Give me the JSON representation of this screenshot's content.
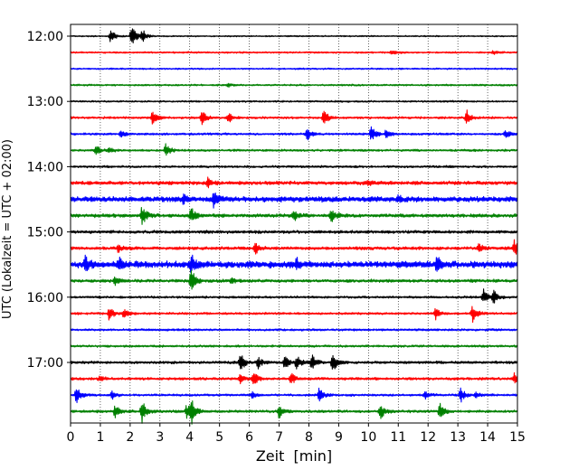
{
  "chart_data": {
    "type": "line",
    "subtype": "helicorder (seismogram drum plot)",
    "xlabel": "Zeit  [min]",
    "ylabel": "UTC (Lokalzeit = UTC + 02:00)",
    "xlim": [
      0,
      15
    ],
    "x_ticks": [
      0,
      1,
      2,
      3,
      4,
      5,
      6,
      7,
      8,
      9,
      10,
      11,
      12,
      13,
      14,
      15
    ],
    "x_tick_labels": [
      "0",
      "1",
      "2",
      "3",
      "4",
      "5",
      "6",
      "7",
      "8",
      "9",
      "10",
      "11",
      "12",
      "13",
      "14",
      "15"
    ],
    "x_grid": "dotted vertical lines at every minute",
    "y_tick_labels": [
      "12:00",
      "13:00",
      "14:00",
      "15:00",
      "16:00",
      "17:00"
    ],
    "row_minutes": 15,
    "row_colors_cycle": [
      "#000000",
      "#ff0000",
      "#0000ff",
      "#008000"
    ],
    "trace_rows": [
      {
        "start": "12:00",
        "color": "#000000",
        "noise": 0.6,
        "events": [
          {
            "x": 1.35,
            "amp": 8
          },
          {
            "x": 2.05,
            "amp": 14
          },
          {
            "x": 2.4,
            "amp": 8
          }
        ]
      },
      {
        "start": "12:15",
        "color": "#ff0000",
        "noise": 0.8,
        "events": [
          {
            "x": 10.8,
            "amp": 3
          },
          {
            "x": 14.2,
            "amp": 2
          }
        ]
      },
      {
        "start": "12:30",
        "color": "#0000ff",
        "noise": 0.7,
        "events": []
      },
      {
        "start": "12:45",
        "color": "#008000",
        "noise": 0.8,
        "events": [
          {
            "x": 5.3,
            "amp": 2
          }
        ]
      },
      {
        "start": "13:00",
        "color": "#000000",
        "noise": 0.8,
        "events": []
      },
      {
        "start": "13:15",
        "color": "#ff0000",
        "noise": 1.0,
        "events": [
          {
            "x": 2.75,
            "amp": 9
          },
          {
            "x": 4.4,
            "amp": 9
          },
          {
            "x": 5.3,
            "amp": 6
          },
          {
            "x": 8.5,
            "amp": 9
          },
          {
            "x": 13.3,
            "amp": 8
          }
        ]
      },
      {
        "start": "13:30",
        "color": "#0000ff",
        "noise": 1.0,
        "events": [
          {
            "x": 1.7,
            "amp": 4
          },
          {
            "x": 7.95,
            "amp": 7
          },
          {
            "x": 10.1,
            "amp": 9
          },
          {
            "x": 10.6,
            "amp": 6
          },
          {
            "x": 14.6,
            "amp": 5
          }
        ]
      },
      {
        "start": "13:45",
        "color": "#008000",
        "noise": 1.0,
        "events": [
          {
            "x": 0.85,
            "amp": 6
          },
          {
            "x": 1.3,
            "amp": 3
          },
          {
            "x": 3.2,
            "amp": 7
          }
        ]
      },
      {
        "start": "14:00",
        "color": "#000000",
        "noise": 1.0,
        "events": []
      },
      {
        "start": "14:15",
        "color": "#ff0000",
        "noise": 1.6,
        "events": [
          {
            "x": 4.6,
            "amp": 6
          },
          {
            "x": 10.0,
            "amp": 3
          }
        ]
      },
      {
        "start": "14:30",
        "color": "#0000ff",
        "noise": 2.4,
        "events": [
          {
            "x": 4.8,
            "amp": 9
          },
          {
            "x": 3.8,
            "amp": 5
          },
          {
            "x": 11.0,
            "amp": 3
          }
        ]
      },
      {
        "start": "14:45",
        "color": "#008000",
        "noise": 1.6,
        "events": [
          {
            "x": 2.4,
            "amp": 12
          },
          {
            "x": 4.05,
            "amp": 9
          },
          {
            "x": 8.75,
            "amp": 8
          },
          {
            "x": 7.5,
            "amp": 5
          }
        ]
      },
      {
        "start": "15:00",
        "color": "#000000",
        "noise": 1.4,
        "events": []
      },
      {
        "start": "15:15",
        "color": "#ff0000",
        "noise": 1.4,
        "events": [
          {
            "x": 1.6,
            "amp": 5
          },
          {
            "x": 6.2,
            "amp": 7
          },
          {
            "x": 13.7,
            "amp": 4
          },
          {
            "x": 14.9,
            "amp": 9
          }
        ]
      },
      {
        "start": "15:30",
        "color": "#0000ff",
        "noise": 3.0,
        "events": [
          {
            "x": 0.5,
            "amp": 9
          },
          {
            "x": 1.6,
            "amp": 7
          },
          {
            "x": 4.05,
            "amp": 10
          },
          {
            "x": 7.6,
            "amp": 6
          },
          {
            "x": 12.3,
            "amp": 8
          }
        ]
      },
      {
        "start": "15:45",
        "color": "#008000",
        "noise": 1.4,
        "events": [
          {
            "x": 4.05,
            "amp": 16
          },
          {
            "x": 1.5,
            "amp": 4
          },
          {
            "x": 5.4,
            "amp": 3
          }
        ]
      },
      {
        "start": "16:00",
        "color": "#000000",
        "noise": 1.0,
        "events": [
          {
            "x": 13.85,
            "amp": 9
          },
          {
            "x": 14.2,
            "amp": 7
          }
        ]
      },
      {
        "start": "16:15",
        "color": "#ff0000",
        "noise": 1.0,
        "events": [
          {
            "x": 1.3,
            "amp": 9
          },
          {
            "x": 1.8,
            "amp": 6
          },
          {
            "x": 12.25,
            "amp": 7
          },
          {
            "x": 13.5,
            "amp": 10
          }
        ]
      },
      {
        "start": "16:30",
        "color": "#0000ff",
        "noise": 1.0,
        "events": []
      },
      {
        "start": "16:45",
        "color": "#008000",
        "noise": 1.0,
        "events": []
      },
      {
        "start": "17:00",
        "color": "#000000",
        "noise": 1.2,
        "events": [
          {
            "x": 5.7,
            "amp": 12
          },
          {
            "x": 7.2,
            "amp": 8
          },
          {
            "x": 7.6,
            "amp": 8
          },
          {
            "x": 8.1,
            "amp": 10
          },
          {
            "x": 8.8,
            "amp": 12
          },
          {
            "x": 6.3,
            "amp": 6
          }
        ]
      },
      {
        "start": "17:15",
        "color": "#ff0000",
        "noise": 1.2,
        "events": [
          {
            "x": 1.0,
            "amp": 3
          },
          {
            "x": 5.7,
            "amp": 5
          },
          {
            "x": 6.15,
            "amp": 8
          },
          {
            "x": 7.4,
            "amp": 7
          },
          {
            "x": 14.9,
            "amp": 6
          }
        ]
      },
      {
        "start": "17:30",
        "color": "#0000ff",
        "noise": 1.0,
        "events": [
          {
            "x": 0.2,
            "amp": 10
          },
          {
            "x": 1.4,
            "amp": 5
          },
          {
            "x": 6.1,
            "amp": 4
          },
          {
            "x": 8.35,
            "amp": 9
          },
          {
            "x": 11.9,
            "amp": 4
          },
          {
            "x": 13.1,
            "amp": 8
          },
          {
            "x": 13.6,
            "amp": 4
          }
        ]
      },
      {
        "start": "17:45",
        "color": "#008000",
        "noise": 1.2,
        "events": [
          {
            "x": 1.5,
            "amp": 7
          },
          {
            "x": 2.4,
            "amp": 12
          },
          {
            "x": 3.9,
            "amp": 8
          },
          {
            "x": 4.05,
            "amp": 13
          },
          {
            "x": 7.0,
            "amp": 8
          },
          {
            "x": 10.4,
            "amp": 9
          },
          {
            "x": 12.4,
            "amp": 9
          }
        ]
      }
    ]
  }
}
